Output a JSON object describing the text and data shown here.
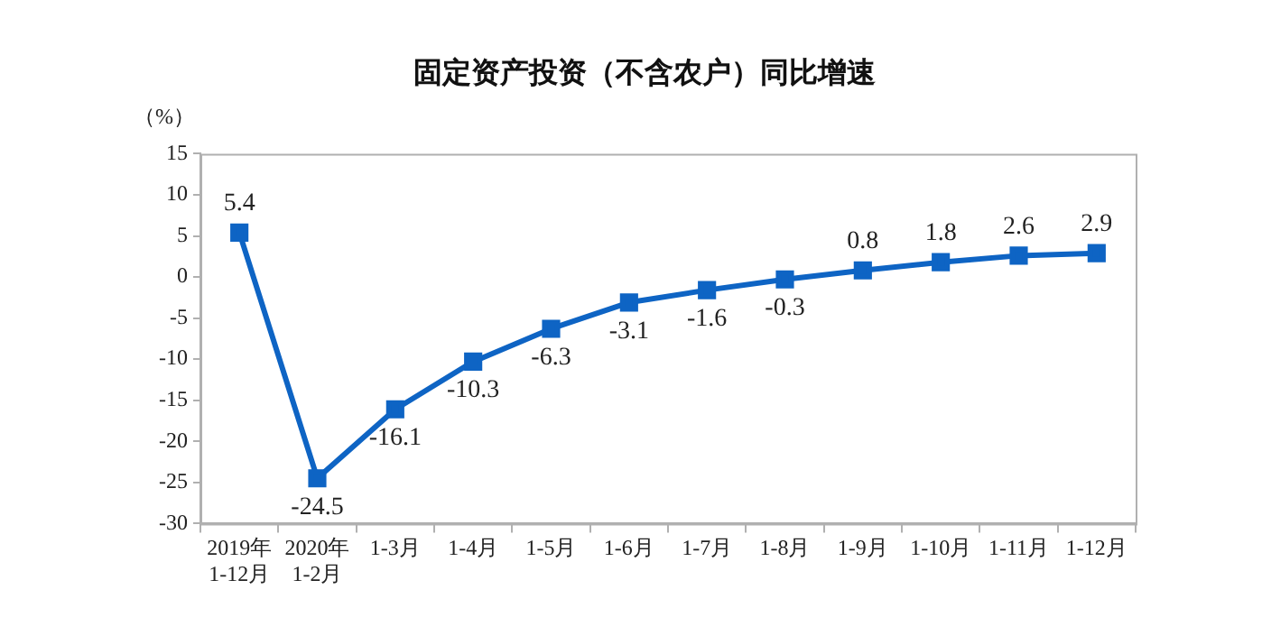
{
  "chart_data": {
    "type": "line",
    "title": "固定资产投资（不含农户）同比增速",
    "ylabel": "（%）",
    "categories": [
      "2019年\n1-12月",
      "2020年\n1-2月",
      "1-3月",
      "1-4月",
      "1-5月",
      "1-6月",
      "1-7月",
      "1-8月",
      "1-9月",
      "1-10月",
      "1-11月",
      "1-12月"
    ],
    "series": [
      {
        "color": "#0e64c4",
        "values": [
          5.4,
          -24.5,
          -16.1,
          -10.3,
          -6.3,
          -3.1,
          -1.6,
          -0.3,
          0.8,
          1.8,
          2.6,
          2.9
        ]
      }
    ],
    "ylim": [
      -30,
      15
    ],
    "yticks": [
      -30,
      -25,
      -20,
      -15,
      -10,
      -5,
      0,
      5,
      10,
      15
    ],
    "grid": false,
    "legend": false,
    "marker": "square",
    "line_style": "solid",
    "data_labels": true
  }
}
